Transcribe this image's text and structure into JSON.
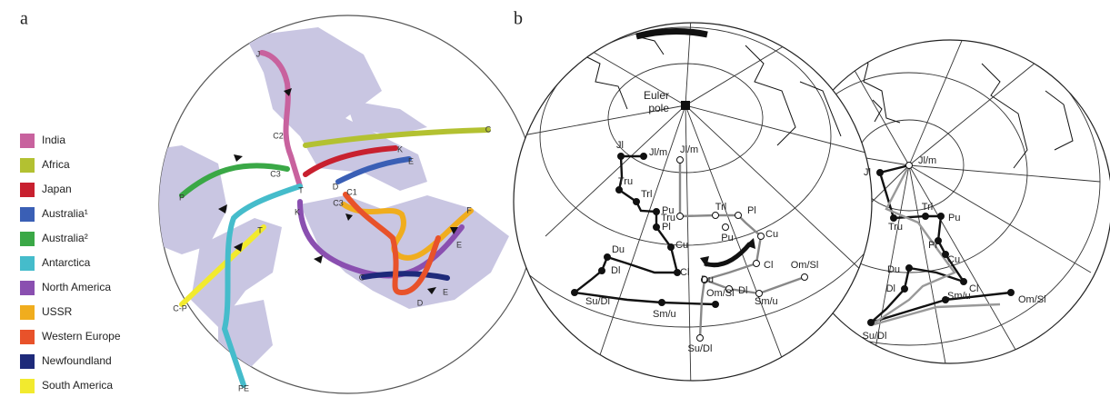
{
  "panel_a": {
    "label": "a",
    "legend": [
      {
        "label": "India",
        "color": "#c8629e"
      },
      {
        "label": "Africa",
        "color": "#b3c131"
      },
      {
        "label": "Japan",
        "color": "#c8202f"
      },
      {
        "label": "Australia¹",
        "color": "#3a5fb5"
      },
      {
        "label": "Australia²",
        "color": "#3aa846"
      },
      {
        "label": "Antarctica",
        "color": "#45bccb"
      },
      {
        "label": "North America",
        "color": "#8a4fb0"
      },
      {
        "label": "USSR",
        "color": "#f0ad1e"
      },
      {
        "label": "Western Europe",
        "color": "#e8522a"
      },
      {
        "label": "Newfoundland",
        "color": "#1e2a7a"
      },
      {
        "label": "South America",
        "color": "#f2ea2e"
      }
    ],
    "path_labels": [
      "J",
      "C2",
      "C3",
      "P",
      "T",
      "K",
      "D",
      "E",
      "C1",
      "C3",
      "C",
      "K",
      "F",
      "E",
      "C",
      "E",
      "D",
      "T",
      "C-P",
      "PE"
    ]
  },
  "panel_b": {
    "label": "b",
    "pole_label": [
      "Euler",
      "pole"
    ],
    "left_black": [
      "Jl",
      "Jl/m",
      "Tru",
      "Trl",
      "Pu",
      "Pl",
      "Cu",
      "Cl",
      "Du",
      "Dl",
      "Su/Dl",
      "Sm/u",
      "Om/Sl"
    ],
    "left_white": [
      "Jl/m",
      "Tru",
      "Trl",
      "Pl",
      "Pu",
      "Cu",
      "Cl",
      "Du",
      "Dl",
      "Sm/u",
      "Om/Sl",
      "Su/Dl"
    ],
    "right_globe": [
      "Jl/m",
      "Jl",
      "Tru",
      "Trl",
      "Pu",
      "Pl",
      "Cu",
      "Cl",
      "Du",
      "Dl",
      "Sm/u",
      "Om/Sl",
      "Su/Dl"
    ]
  }
}
